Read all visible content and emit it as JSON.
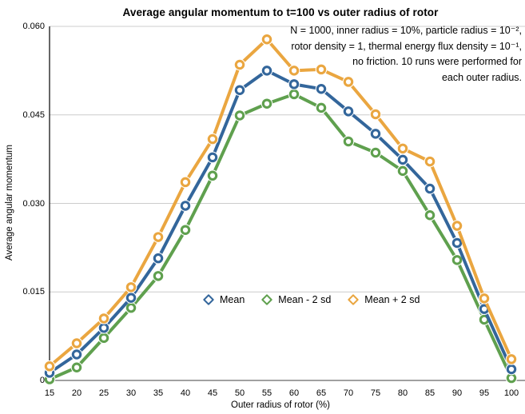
{
  "chart_data": {
    "type": "line",
    "title": "Average angular momentum to t=100 vs outer radius of rotor",
    "xlabel": "Outer radius of rotor (%)",
    "ylabel": "Average angular momentum",
    "x": [
      15,
      20,
      25,
      30,
      35,
      40,
      45,
      50,
      55,
      60,
      65,
      70,
      75,
      80,
      85,
      90,
      95,
      100
    ],
    "xtick_labels": [
      "15",
      "20",
      "25",
      "30",
      "35",
      "40",
      "45",
      "50",
      "55",
      "60",
      "65",
      "70",
      "75",
      "80",
      "85",
      "90",
      "95",
      "100"
    ],
    "ylim": [
      0,
      0.06
    ],
    "yticks": [
      0,
      0.015,
      0.03,
      0.045,
      0.06
    ],
    "ytick_labels": [
      "0",
      "0.015",
      "0.030",
      "0.045",
      "0.060"
    ],
    "grid": true,
    "legend_position": "inside-bottom-center",
    "series": [
      {
        "name": "Mean",
        "color": "#33669B",
        "values": [
          0.0013,
          0.0044,
          0.0089,
          0.014,
          0.0207,
          0.0296,
          0.0378,
          0.0492,
          0.0525,
          0.0502,
          0.0494,
          0.0456,
          0.0418,
          0.0374,
          0.0325,
          0.0233,
          0.0121,
          0.0019
        ]
      },
      {
        "name": "Mean - 2 sd",
        "color": "#5FA04E",
        "values": [
          0.0002,
          0.0022,
          0.0072,
          0.0123,
          0.0177,
          0.0255,
          0.0347,
          0.0449,
          0.0469,
          0.0485,
          0.0462,
          0.0405,
          0.0386,
          0.0355,
          0.028,
          0.0204,
          0.0103,
          0.0004
        ]
      },
      {
        "name": "Mean + 2 sd",
        "color": "#EAA640",
        "values": [
          0.0024,
          0.0063,
          0.0105,
          0.0158,
          0.0243,
          0.0336,
          0.0409,
          0.0535,
          0.0578,
          0.0525,
          0.0527,
          0.0506,
          0.0451,
          0.0393,
          0.0371,
          0.0262,
          0.0139,
          0.0036
        ]
      }
    ],
    "annotation": {
      "lines": [
        "N = 1000, inner radius = 10%, particle radius = 10⁻²,",
        "rotor density = 1, thermal energy flux density = 10⁻¹,",
        "no friction. 10 runs were performed for",
        "each outer radius."
      ]
    },
    "colors": {
      "gridline": "#CCCCCC",
      "x_axis_line": "#808080",
      "y_axis_line": "#000000"
    }
  }
}
